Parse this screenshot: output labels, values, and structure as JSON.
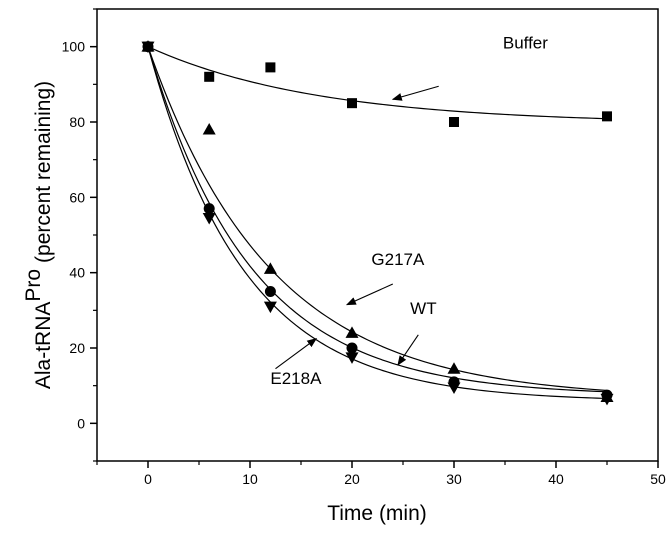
{
  "chart_data": {
    "type": "scatter",
    "xlabel": "Time (min)",
    "ylabel_main": "Ala-tRNA",
    "ylabel_super": "Pro",
    "ylabel_paren": "(percent remaining)",
    "xlim": [
      -5,
      50
    ],
    "ylim": [
      -10,
      110
    ],
    "xticks": [
      0,
      10,
      20,
      30,
      40,
      50
    ],
    "yticks": [
      0,
      20,
      40,
      60,
      80,
      100
    ],
    "series": [
      {
        "name": "Buffer",
        "marker": "square",
        "x": [
          0,
          6,
          12,
          20,
          30,
          45
        ],
        "y": [
          100,
          92,
          94.5,
          85,
          80,
          81.5
        ],
        "fit": {
          "plateau": 79.5,
          "k": 0.06
        }
      },
      {
        "name": "G217A",
        "marker": "triangle-up",
        "x": [
          0,
          6,
          12,
          20,
          30,
          45
        ],
        "y": [
          100,
          78,
          41,
          24,
          14.5,
          7
        ],
        "fit": {
          "plateau": 6.5,
          "k": 0.083
        }
      },
      {
        "name": "WT",
        "marker": "circle",
        "x": [
          0,
          6,
          12,
          20,
          30,
          45
        ],
        "y": [
          100,
          57,
          35,
          20,
          11,
          7.5
        ],
        "fit": {
          "plateau": 7.3,
          "k": 0.099
        }
      },
      {
        "name": "E218A",
        "marker": "triangle-down",
        "x": [
          0,
          6,
          12,
          20,
          30,
          45
        ],
        "y": [
          100,
          54.5,
          31,
          17.5,
          9.5,
          6.5
        ],
        "fit": {
          "plateau": 5.8,
          "k": 0.106
        }
      }
    ],
    "annotations": [
      {
        "label": "Buffer",
        "text_at": [
          37,
          99.5
        ],
        "arrow_from": [
          28.5,
          89.5
        ],
        "arrow_to": [
          24,
          86
        ]
      },
      {
        "label": "G217A",
        "text_at": [
          24.5,
          42
        ],
        "arrow_from": [
          24,
          37
        ],
        "arrow_to": [
          19.5,
          31.5
        ]
      },
      {
        "label": "WT",
        "text_at": [
          27,
          29
        ],
        "arrow_from": [
          26.5,
          23.5
        ],
        "arrow_to": [
          24.5,
          15.5
        ]
      },
      {
        "label": "E218A",
        "text_at": [
          14.5,
          10.5
        ],
        "arrow_from": [
          12.5,
          14.5
        ],
        "arrow_to": [
          16.5,
          22.5
        ]
      }
    ],
    "grid": false,
    "legend": "none"
  }
}
